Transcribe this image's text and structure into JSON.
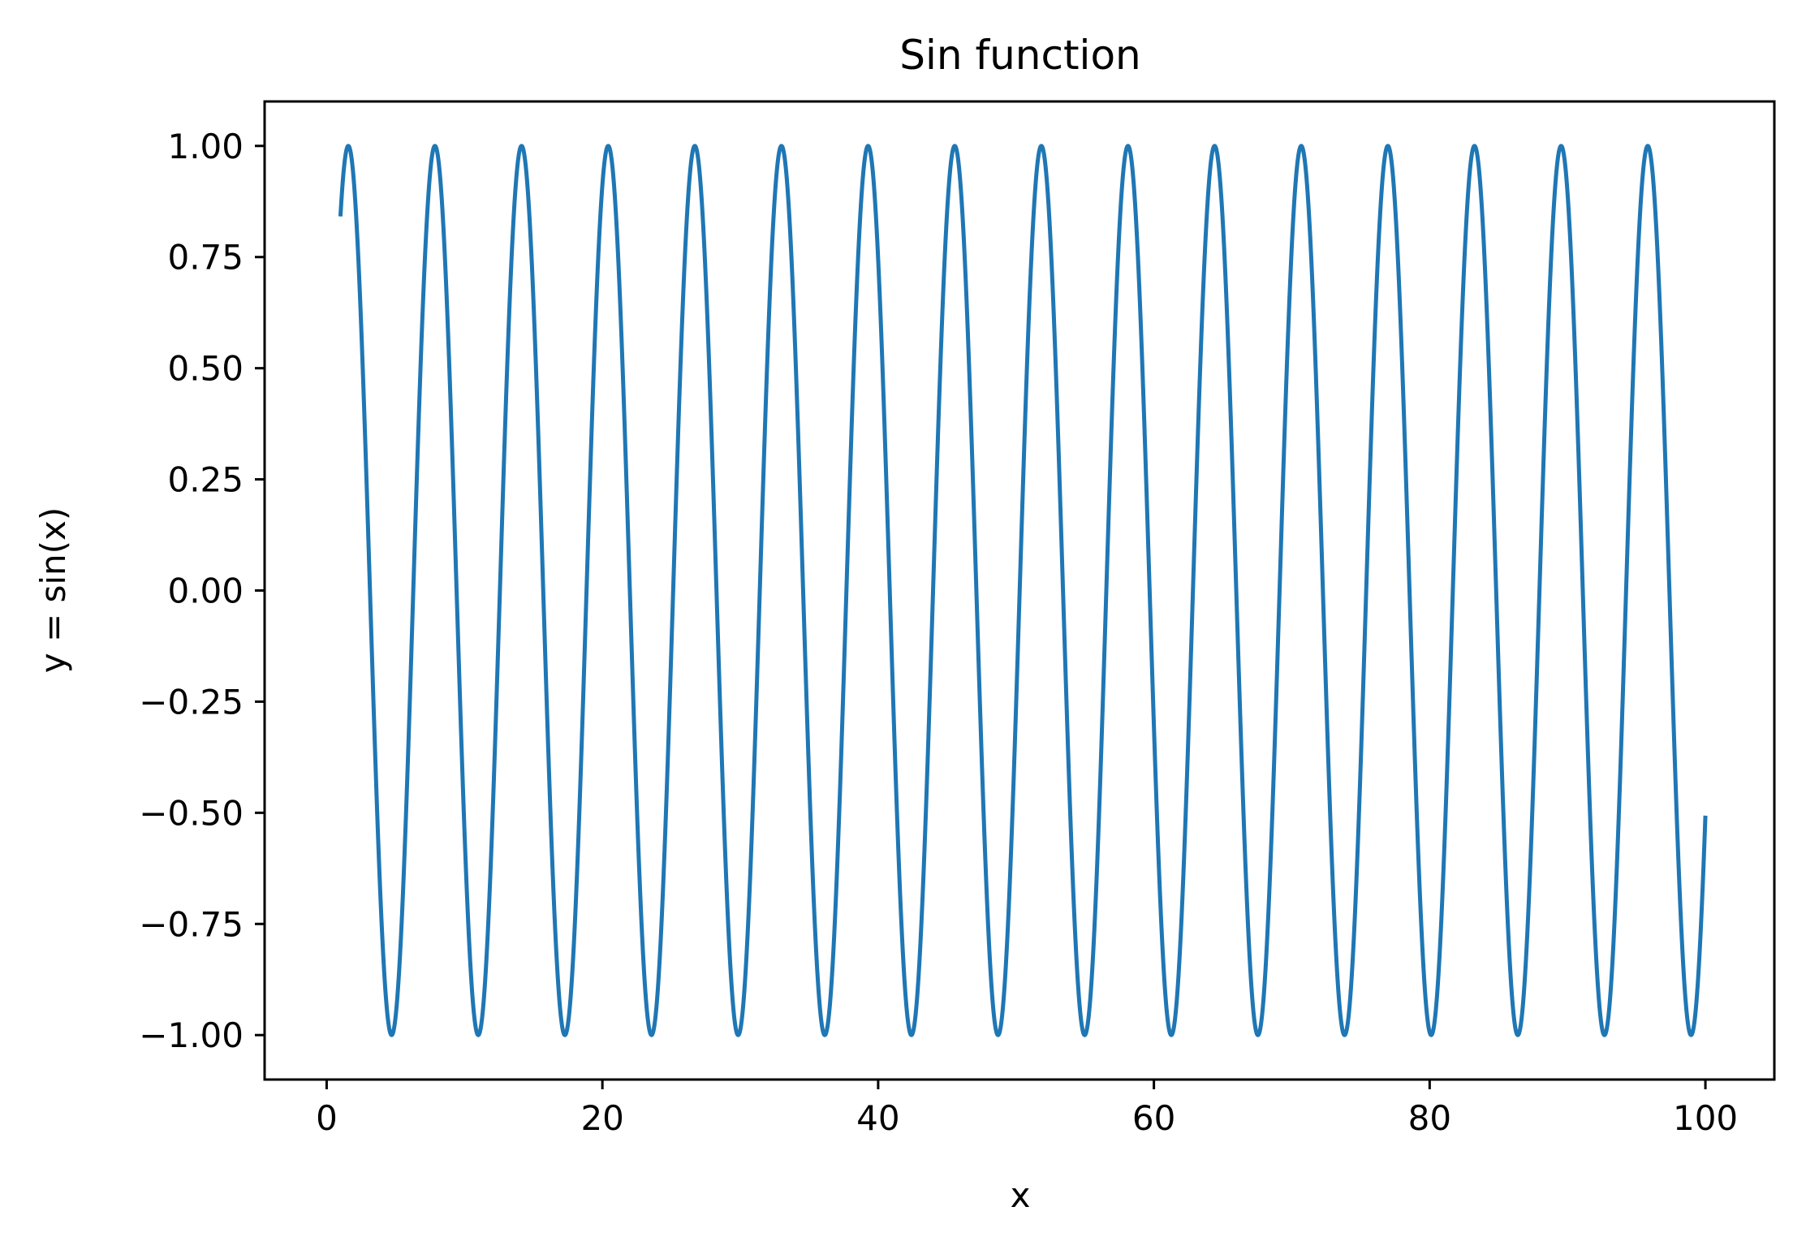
{
  "chart_data": {
    "type": "line",
    "title": "Sin function",
    "xlabel": "x",
    "ylabel": "y = sin(x)",
    "function": "sin(x)",
    "x_range": [
      1,
      100
    ],
    "xlim": [
      -4.5,
      105
    ],
    "ylim": [
      -1.1,
      1.1
    ],
    "xticks": [
      0,
      20,
      40,
      60,
      80,
      100
    ],
    "xtick_labels": [
      "0",
      "20",
      "40",
      "60",
      "80",
      "100"
    ],
    "yticks": [
      1.0,
      0.75,
      0.5,
      0.25,
      0.0,
      -0.25,
      -0.5,
      -0.75,
      -1.0
    ],
    "ytick_labels": [
      "1.00",
      "0.75",
      "0.50",
      "0.25",
      "0.00",
      "−0.25",
      "−0.50",
      "−0.75",
      "−1.00"
    ],
    "grid": false,
    "series": [
      {
        "color": "#1f77b4",
        "x_start": 1,
        "x_end": 100,
        "y_start": 0.841,
        "y_end": -0.506,
        "peaks_x": [
          1.57,
          7.85,
          14.14,
          20.42,
          26.7,
          32.99,
          39.27,
          45.55,
          51.84,
          58.12,
          64.4,
          70.69,
          76.97,
          83.25,
          89.54,
          95.82
        ],
        "troughs_x": [
          4.71,
          10.99,
          17.28,
          23.56,
          29.85,
          36.13,
          42.41,
          48.69,
          54.98,
          61.26,
          67.54,
          73.83,
          80.11,
          86.39,
          92.68,
          98.96
        ]
      }
    ]
  }
}
